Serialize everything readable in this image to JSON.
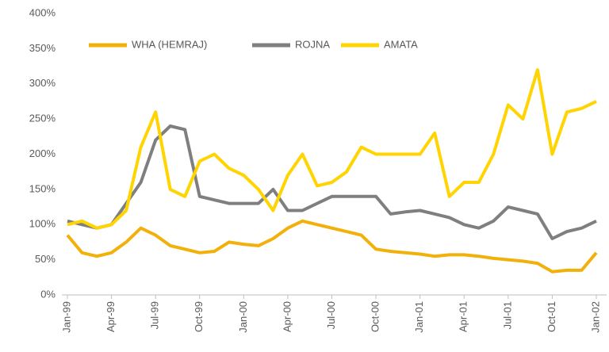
{
  "chart_data": {
    "type": "line",
    "x": [
      "1999-01",
      "1999-02",
      "1999-03",
      "1999-04",
      "1999-05",
      "1999-06",
      "1999-07",
      "1999-08",
      "1999-09",
      "1999-10",
      "1999-11",
      "1999-12",
      "2000-01",
      "2000-02",
      "2000-03",
      "2000-04",
      "2000-05",
      "2000-06",
      "2000-07",
      "2000-08",
      "2000-09",
      "2000-10",
      "2000-11",
      "2000-12",
      "2001-01",
      "2001-02",
      "2001-03",
      "2001-04",
      "2001-05",
      "2001-06",
      "2001-07",
      "2001-08",
      "2001-09",
      "2001-10",
      "2001-11",
      "2001-12",
      "2002-01"
    ],
    "xticks": [
      {
        "value": "1999-01",
        "label": "Jan-99"
      },
      {
        "value": "1999-04",
        "label": "Apr-99"
      },
      {
        "value": "1999-07",
        "label": "Jul-99"
      },
      {
        "value": "1999-10",
        "label": "Oct-99"
      },
      {
        "value": "2000-01",
        "label": "Jan-00"
      },
      {
        "value": "2000-04",
        "label": "Apr-00"
      },
      {
        "value": "2000-07",
        "label": "Jul-00"
      },
      {
        "value": "2000-10",
        "label": "Oct-00"
      },
      {
        "value": "2001-01",
        "label": "Jan-01"
      },
      {
        "value": "2001-04",
        "label": "Apr-01"
      },
      {
        "value": "2001-07",
        "label": "Jul-01"
      },
      {
        "value": "2001-10",
        "label": "Oct-01"
      },
      {
        "value": "2002-01",
        "label": "Jan-02"
      }
    ],
    "ylim": [
      0,
      400
    ],
    "yticks": [
      {
        "value": 0,
        "label": "0%"
      },
      {
        "value": 50,
        "label": "50%"
      },
      {
        "value": 100,
        "label": "100%"
      },
      {
        "value": 150,
        "label": "150%"
      },
      {
        "value": 200,
        "label": "200%"
      },
      {
        "value": 250,
        "label": "250%"
      },
      {
        "value": 300,
        "label": "300%"
      },
      {
        "value": 350,
        "label": "350%"
      },
      {
        "value": 400,
        "label": "400%"
      }
    ],
    "legend": "top-left",
    "series": [
      {
        "name": "WHA (HEMRAJ)",
        "color": "#f2b10a",
        "values": [
          85,
          60,
          55,
          60,
          75,
          95,
          85,
          70,
          65,
          60,
          62,
          75,
          72,
          70,
          80,
          95,
          105,
          100,
          95,
          90,
          85,
          65,
          62,
          60,
          58,
          55,
          57,
          57,
          55,
          52,
          50,
          48,
          45,
          33,
          35,
          35,
          60
        ]
      },
      {
        "name": "ROJNA",
        "color": "#7f7f7f",
        "values": [
          105,
          100,
          95,
          100,
          130,
          160,
          220,
          240,
          235,
          140,
          135,
          130,
          130,
          130,
          150,
          120,
          120,
          130,
          140,
          140,
          140,
          140,
          115,
          118,
          120,
          115,
          110,
          100,
          95,
          105,
          125,
          120,
          115,
          80,
          90,
          95,
          105
        ]
      },
      {
        "name": "AMATA",
        "color": "#ffd400",
        "values": [
          100,
          105,
          95,
          100,
          120,
          210,
          260,
          150,
          140,
          190,
          200,
          180,
          170,
          150,
          120,
          170,
          200,
          155,
          160,
          175,
          210,
          200,
          200,
          200,
          200,
          230,
          140,
          160,
          160,
          200,
          270,
          250,
          320,
          200,
          260,
          265,
          275
        ]
      }
    ]
  }
}
